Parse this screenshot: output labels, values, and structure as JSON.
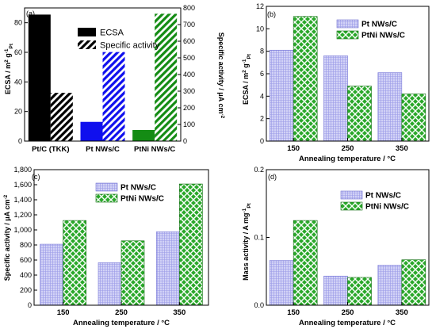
{
  "chart_data": [
    {
      "type": "bar",
      "panel_label": "(a)",
      "categories": [
        "Pt/C (TKK)",
        "Pt NWs/C",
        "PtNi NWs/C"
      ],
      "colors": [
        "#000000",
        "#1010ee",
        "#148c14"
      ],
      "series": [
        {
          "name": "ECSA",
          "axis": "left",
          "values": [
            85.5,
            13,
            7.5
          ]
        },
        {
          "name": "Specific activity",
          "axis": "right",
          "values": [
            290,
            535,
            765
          ]
        }
      ],
      "ylabel_left": "ECSA / m² g⁻¹Pt",
      "ylabel_right": "Specific activity / μA cm⁻²",
      "ylim_left": [
        0,
        90
      ],
      "yticks_left": [
        "0",
        "20",
        "40",
        "60",
        "80"
      ],
      "ylim_right": [
        0,
        800
      ],
      "yticks_right": [
        "0",
        "100",
        "200",
        "300",
        "400",
        "500",
        "600",
        "700",
        "800"
      ],
      "legend": "top-right"
    },
    {
      "type": "bar",
      "panel_label": "(b)",
      "categories": [
        "150",
        "250",
        "350"
      ],
      "series": [
        {
          "name": "Pt NWs/C",
          "values": [
            8.1,
            7.6,
            6.1
          ]
        },
        {
          "name": "PtNi NWs/C",
          "values": [
            11.1,
            4.9,
            4.2
          ]
        }
      ],
      "xlabel": "Annealing temperature / °C",
      "ylabel": "ECSA / m² g⁻¹Pt",
      "ylim": [
        0,
        12
      ],
      "yticks": [
        "0",
        "2",
        "4",
        "6",
        "8",
        "10",
        "12"
      ],
      "legend": "top-right"
    },
    {
      "type": "bar",
      "panel_label": "(c)",
      "categories": [
        "150",
        "250",
        "350"
      ],
      "series": [
        {
          "name": "Pt NWs/C",
          "values": [
            810,
            565,
            975
          ]
        },
        {
          "name": "PtNi NWs/C",
          "values": [
            1125,
            855,
            1610
          ]
        }
      ],
      "xlabel": "Annealing temperature / °C",
      "ylabel": "Specific activity / μA cm⁻²",
      "ylim": [
        0,
        1800
      ],
      "yticks": [
        "0",
        "200",
        "400",
        "600",
        "800",
        "1,000",
        "1,200",
        "1,400",
        "1,600",
        "1,800"
      ],
      "legend": "top-left"
    },
    {
      "type": "bar",
      "panel_label": "(d)",
      "categories": [
        "150",
        "250",
        "350"
      ],
      "series": [
        {
          "name": "Pt NWs/C",
          "values": [
            0.066,
            0.043,
            0.059
          ]
        },
        {
          "name": "PtNi NWs/C",
          "values": [
            0.125,
            0.041,
            0.067
          ]
        }
      ],
      "xlabel": "Annealing temperature / °C",
      "ylabel": "Mass activity / A mg⁻¹Pt",
      "ylim": [
        0,
        0.2
      ],
      "yticks": [
        "0.0",
        "0.1",
        "0.2"
      ],
      "legend": "top-right"
    }
  ],
  "colors": {
    "pt_fill": "#c8c8f4",
    "ptni_fill": "#2aa82a",
    "ptni_check": "#ffffff"
  }
}
